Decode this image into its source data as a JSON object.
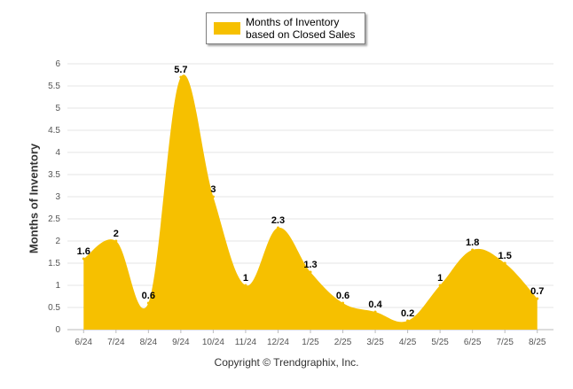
{
  "chart_data": {
    "type": "area",
    "title": "",
    "xlabel": "",
    "ylabel": "Months of Inventory",
    "categories": [
      "6/24",
      "7/24",
      "8/24",
      "9/24",
      "10/24",
      "11/24",
      "12/24",
      "1/25",
      "2/25",
      "3/25",
      "4/25",
      "5/25",
      "6/25",
      "7/25",
      "8/25"
    ],
    "series": [
      {
        "name": "Months of Inventory based on Closed Sales",
        "values": [
          1.6,
          2,
          0.6,
          5.7,
          3,
          1,
          2.3,
          1.3,
          0.6,
          0.4,
          0.2,
          1,
          1.8,
          1.5,
          0.7
        ]
      }
    ],
    "data_labels": [
      "1.6",
      "2",
      "0.6",
      "5.7",
      "3",
      "1",
      "2.3",
      "1.3",
      "0.6",
      "0.4",
      "0.2",
      "1",
      "1.8",
      "1.5",
      "0.7"
    ],
    "yticks": [
      "0",
      "0.5",
      "1",
      "1.5",
      "2",
      "2.5",
      "3",
      "3.5",
      "4",
      "4.5",
      "5",
      "5.5",
      "6"
    ],
    "ylim": [
      0,
      6
    ],
    "grid": true,
    "legend_position": "top-center",
    "color": "#f6c000"
  },
  "legend": {
    "label": "Months of Inventory based on Closed Sales"
  },
  "footer": {
    "copyright": "Copyright © Trendgraphix, Inc."
  }
}
